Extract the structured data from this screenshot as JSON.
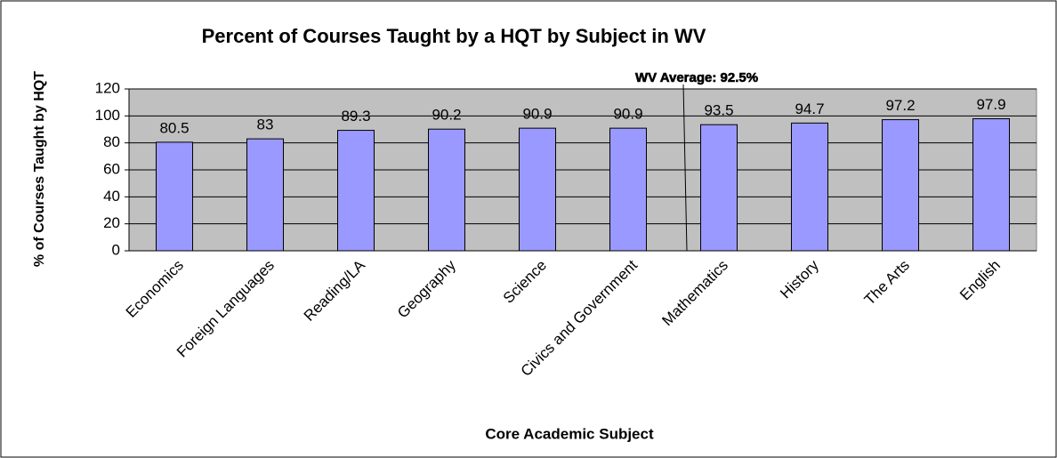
{
  "chart_data": {
    "type": "bar",
    "title": "Percent of Courses Taught by a HQT by Subject in WV",
    "x_label": "Core Academic Subject",
    "y_label": "% of Courses Taught by HQT",
    "annotation": "WV Average: 92.5%",
    "categories": [
      "Economics",
      "Foreign Languages",
      "Reading/LA",
      "Geography",
      "Science",
      "Civics and Government",
      "Mathematics",
      "History",
      "The Arts",
      "English"
    ],
    "values": [
      80.5,
      83,
      89.3,
      90.2,
      90.9,
      90.9,
      93.5,
      94.7,
      97.2,
      97.9
    ],
    "color": "#9999ff",
    "ylim": [
      0,
      120
    ],
    "yticks": [
      0,
      20,
      40,
      60,
      80,
      100,
      120
    ],
    "grid": true
  }
}
